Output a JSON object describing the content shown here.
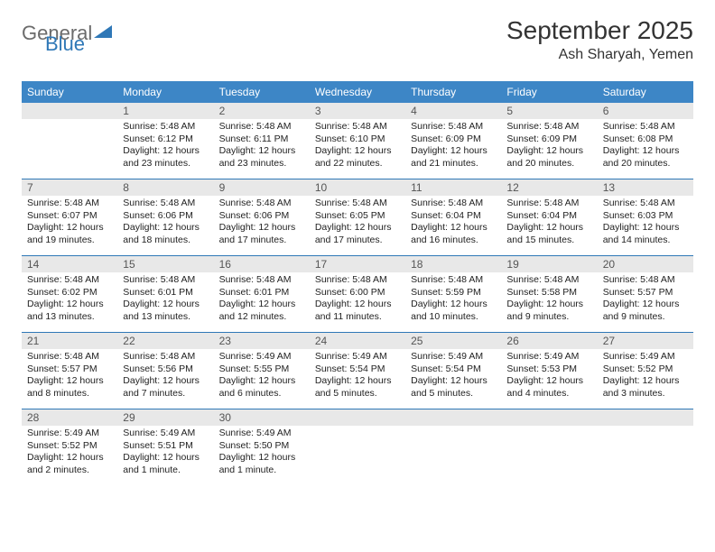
{
  "logo": {
    "word1": "General",
    "word2": "Blue"
  },
  "title": "September 2025",
  "subtitle": "Ash Sharyah, Yemen",
  "header_bg": "#3d86c6",
  "daynum_bg": "#e8e8e8",
  "week_border": "#2f78b7",
  "day_names": [
    "Sunday",
    "Monday",
    "Tuesday",
    "Wednesday",
    "Thursday",
    "Friday",
    "Saturday"
  ],
  "weeks": [
    [
      {
        "n": "",
        "sr": "",
        "ss": "",
        "dl": ""
      },
      {
        "n": "1",
        "sr": "Sunrise: 5:48 AM",
        "ss": "Sunset: 6:12 PM",
        "dl": "Daylight: 12 hours and 23 minutes."
      },
      {
        "n": "2",
        "sr": "Sunrise: 5:48 AM",
        "ss": "Sunset: 6:11 PM",
        "dl": "Daylight: 12 hours and 23 minutes."
      },
      {
        "n": "3",
        "sr": "Sunrise: 5:48 AM",
        "ss": "Sunset: 6:10 PM",
        "dl": "Daylight: 12 hours and 22 minutes."
      },
      {
        "n": "4",
        "sr": "Sunrise: 5:48 AM",
        "ss": "Sunset: 6:09 PM",
        "dl": "Daylight: 12 hours and 21 minutes."
      },
      {
        "n": "5",
        "sr": "Sunrise: 5:48 AM",
        "ss": "Sunset: 6:09 PM",
        "dl": "Daylight: 12 hours and 20 minutes."
      },
      {
        "n": "6",
        "sr": "Sunrise: 5:48 AM",
        "ss": "Sunset: 6:08 PM",
        "dl": "Daylight: 12 hours and 20 minutes."
      }
    ],
    [
      {
        "n": "7",
        "sr": "Sunrise: 5:48 AM",
        "ss": "Sunset: 6:07 PM",
        "dl": "Daylight: 12 hours and 19 minutes."
      },
      {
        "n": "8",
        "sr": "Sunrise: 5:48 AM",
        "ss": "Sunset: 6:06 PM",
        "dl": "Daylight: 12 hours and 18 minutes."
      },
      {
        "n": "9",
        "sr": "Sunrise: 5:48 AM",
        "ss": "Sunset: 6:06 PM",
        "dl": "Daylight: 12 hours and 17 minutes."
      },
      {
        "n": "10",
        "sr": "Sunrise: 5:48 AM",
        "ss": "Sunset: 6:05 PM",
        "dl": "Daylight: 12 hours and 17 minutes."
      },
      {
        "n": "11",
        "sr": "Sunrise: 5:48 AM",
        "ss": "Sunset: 6:04 PM",
        "dl": "Daylight: 12 hours and 16 minutes."
      },
      {
        "n": "12",
        "sr": "Sunrise: 5:48 AM",
        "ss": "Sunset: 6:04 PM",
        "dl": "Daylight: 12 hours and 15 minutes."
      },
      {
        "n": "13",
        "sr": "Sunrise: 5:48 AM",
        "ss": "Sunset: 6:03 PM",
        "dl": "Daylight: 12 hours and 14 minutes."
      }
    ],
    [
      {
        "n": "14",
        "sr": "Sunrise: 5:48 AM",
        "ss": "Sunset: 6:02 PM",
        "dl": "Daylight: 12 hours and 13 minutes."
      },
      {
        "n": "15",
        "sr": "Sunrise: 5:48 AM",
        "ss": "Sunset: 6:01 PM",
        "dl": "Daylight: 12 hours and 13 minutes."
      },
      {
        "n": "16",
        "sr": "Sunrise: 5:48 AM",
        "ss": "Sunset: 6:01 PM",
        "dl": "Daylight: 12 hours and 12 minutes."
      },
      {
        "n": "17",
        "sr": "Sunrise: 5:48 AM",
        "ss": "Sunset: 6:00 PM",
        "dl": "Daylight: 12 hours and 11 minutes."
      },
      {
        "n": "18",
        "sr": "Sunrise: 5:48 AM",
        "ss": "Sunset: 5:59 PM",
        "dl": "Daylight: 12 hours and 10 minutes."
      },
      {
        "n": "19",
        "sr": "Sunrise: 5:48 AM",
        "ss": "Sunset: 5:58 PM",
        "dl": "Daylight: 12 hours and 9 minutes."
      },
      {
        "n": "20",
        "sr": "Sunrise: 5:48 AM",
        "ss": "Sunset: 5:57 PM",
        "dl": "Daylight: 12 hours and 9 minutes."
      }
    ],
    [
      {
        "n": "21",
        "sr": "Sunrise: 5:48 AM",
        "ss": "Sunset: 5:57 PM",
        "dl": "Daylight: 12 hours and 8 minutes."
      },
      {
        "n": "22",
        "sr": "Sunrise: 5:48 AM",
        "ss": "Sunset: 5:56 PM",
        "dl": "Daylight: 12 hours and 7 minutes."
      },
      {
        "n": "23",
        "sr": "Sunrise: 5:49 AM",
        "ss": "Sunset: 5:55 PM",
        "dl": "Daylight: 12 hours and 6 minutes."
      },
      {
        "n": "24",
        "sr": "Sunrise: 5:49 AM",
        "ss": "Sunset: 5:54 PM",
        "dl": "Daylight: 12 hours and 5 minutes."
      },
      {
        "n": "25",
        "sr": "Sunrise: 5:49 AM",
        "ss": "Sunset: 5:54 PM",
        "dl": "Daylight: 12 hours and 5 minutes."
      },
      {
        "n": "26",
        "sr": "Sunrise: 5:49 AM",
        "ss": "Sunset: 5:53 PM",
        "dl": "Daylight: 12 hours and 4 minutes."
      },
      {
        "n": "27",
        "sr": "Sunrise: 5:49 AM",
        "ss": "Sunset: 5:52 PM",
        "dl": "Daylight: 12 hours and 3 minutes."
      }
    ],
    [
      {
        "n": "28",
        "sr": "Sunrise: 5:49 AM",
        "ss": "Sunset: 5:52 PM",
        "dl": "Daylight: 12 hours and 2 minutes."
      },
      {
        "n": "29",
        "sr": "Sunrise: 5:49 AM",
        "ss": "Sunset: 5:51 PM",
        "dl": "Daylight: 12 hours and 1 minute."
      },
      {
        "n": "30",
        "sr": "Sunrise: 5:49 AM",
        "ss": "Sunset: 5:50 PM",
        "dl": "Daylight: 12 hours and 1 minute."
      },
      {
        "n": "",
        "sr": "",
        "ss": "",
        "dl": ""
      },
      {
        "n": "",
        "sr": "",
        "ss": "",
        "dl": ""
      },
      {
        "n": "",
        "sr": "",
        "ss": "",
        "dl": ""
      },
      {
        "n": "",
        "sr": "",
        "ss": "",
        "dl": ""
      }
    ]
  ]
}
